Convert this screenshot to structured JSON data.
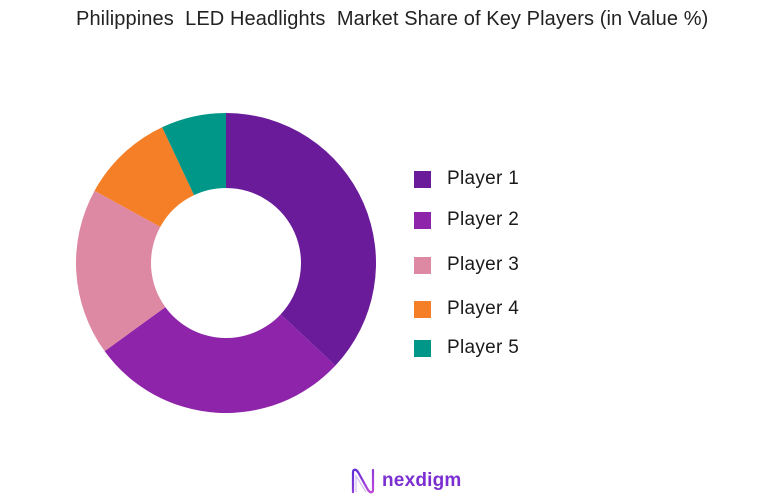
{
  "title": "Philippines  LED Headlights  Market Share of Key Players (in Value %)",
  "chart_data": {
    "type": "pie",
    "subtype": "donut",
    "title": "Philippines  LED Headlights  Market Share of Key Players (in Value %)",
    "categories": [
      "Player 1",
      "Player 2",
      "Player 3",
      "Player 4",
      "Player 5"
    ],
    "values": [
      37,
      28,
      18,
      10,
      7
    ],
    "colors": [
      "#6A1B9A",
      "#8E24AA",
      "#DE89A3",
      "#F47F27",
      "#009688"
    ],
    "start_angle_deg": 0,
    "direction": "clockwise",
    "legend_position": "right",
    "center": [
      226,
      263
    ],
    "outer_radius": 150,
    "inner_radius": 75
  },
  "legend": {
    "items": [
      {
        "label": "Player 1",
        "color": "#6A1B9A"
      },
      {
        "label": "Player 2",
        "color": "#8E24AA"
      },
      {
        "label": "Player 3",
        "color": "#DE89A3"
      },
      {
        "label": "Player 4",
        "color": "#F47F27"
      },
      {
        "label": "Player 5",
        "color": "#009688"
      }
    ]
  },
  "logo": {
    "text": "nexdigm"
  }
}
